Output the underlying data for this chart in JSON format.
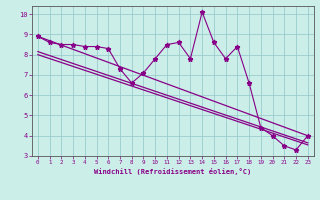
{
  "xlabel": "Windchill (Refroidissement éolien,°C)",
  "ylabel": "",
  "bg_color": "#cceee8",
  "line_color": "#880088",
  "grid_color": "#99cccc",
  "xlim": [
    -0.5,
    23.5
  ],
  "ylim": [
    3,
    10.4
  ],
  "xticks": [
    0,
    1,
    2,
    3,
    4,
    5,
    6,
    7,
    8,
    9,
    10,
    11,
    12,
    13,
    14,
    15,
    16,
    17,
    18,
    19,
    20,
    21,
    22,
    23
  ],
  "yticks": [
    3,
    4,
    5,
    6,
    7,
    8,
    9,
    10
  ],
  "data_x": [
    0,
    1,
    2,
    3,
    4,
    5,
    6,
    7,
    8,
    9,
    10,
    11,
    12,
    13,
    14,
    15,
    16,
    17,
    18,
    19,
    20,
    21,
    22,
    23
  ],
  "data_y": [
    8.9,
    8.6,
    8.5,
    8.5,
    8.4,
    8.4,
    8.3,
    7.3,
    6.6,
    7.1,
    7.8,
    8.5,
    8.6,
    7.8,
    10.1,
    8.6,
    7.8,
    8.4,
    6.6,
    4.4,
    4.0,
    3.5,
    3.3,
    4.0
  ],
  "trend1_x": [
    0,
    23
  ],
  "trend1_y": [
    8.9,
    4.0
  ],
  "trend2_x": [
    0,
    23
  ],
  "trend2_y": [
    8.0,
    3.55
  ],
  "trend3_x": [
    0,
    23
  ],
  "trend3_y": [
    8.15,
    3.65
  ]
}
